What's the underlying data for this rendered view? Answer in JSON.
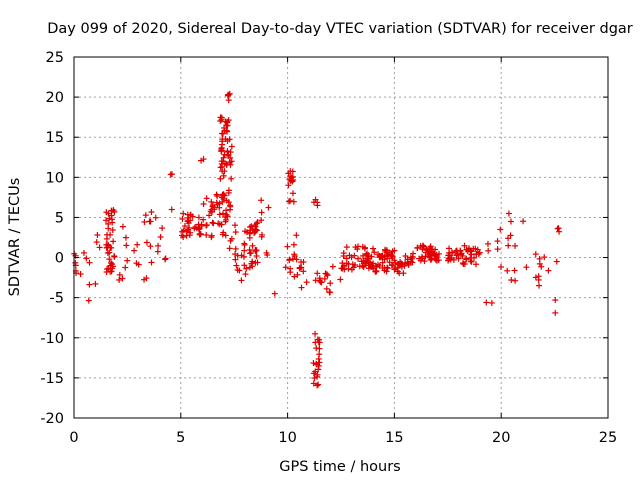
{
  "chart_data": {
    "type": "scatter",
    "title": "Day 099 of 2020, Sidereal Day-to-day VTEC variation (SDTVAR) for receiver dgar",
    "xlabel": "GPS time / hours",
    "ylabel": "SDTVAR / TECUs",
    "xlim": [
      0,
      25
    ],
    "ylim": [
      -20,
      25
    ],
    "xticks": [
      0,
      5,
      10,
      15,
      20,
      25
    ],
    "xtick_labels": [
      "0",
      "5",
      "10",
      "15",
      "20",
      "25"
    ],
    "yticks": [
      -20,
      -15,
      -10,
      -5,
      0,
      5,
      10,
      15,
      20,
      25
    ],
    "ytick_labels": [
      "-20",
      "-15",
      "-10",
      "-5",
      "0",
      "5",
      "10",
      "15",
      "20",
      "25"
    ],
    "grid": true,
    "marker": "+",
    "color": "#e00000",
    "clusters": [
      {
        "x": [
          0.0,
          0.1
        ],
        "y": [
          -2.5,
          1.8
        ],
        "n": 6
      },
      {
        "x": [
          0.3,
          1.2
        ],
        "y": [
          -6.0,
          3.0
        ],
        "n": 10
      },
      {
        "x": [
          1.5,
          1.9
        ],
        "y": [
          -2.0,
          6.0
        ],
        "n": 40
      },
      {
        "x": [
          2.0,
          2.5
        ],
        "y": [
          -3.0,
          5.0
        ],
        "n": 8
      },
      {
        "x": [
          2.8,
          4.6
        ],
        "y": [
          -3.0,
          6.0
        ],
        "n": 22
      },
      {
        "x": [
          4.5,
          4.6
        ],
        "y": [
          10.0,
          11.0
        ],
        "n": 2
      },
      {
        "x": [
          5.0,
          6.0
        ],
        "y": [
          2.5,
          5.5
        ],
        "n": 35
      },
      {
        "x": [
          5.9,
          6.1
        ],
        "y": [
          12.0,
          12.5
        ],
        "n": 2
      },
      {
        "x": [
          6.0,
          7.2
        ],
        "y": [
          2.5,
          8.0
        ],
        "n": 40
      },
      {
        "x": [
          6.8,
          7.4
        ],
        "y": [
          5.0,
          17.5
        ],
        "n": 60
      },
      {
        "x": [
          7.2,
          7.3
        ],
        "y": [
          19.5,
          20.5
        ],
        "n": 5
      },
      {
        "x": [
          7.0,
          7.6
        ],
        "y": [
          -0.5,
          13.0
        ],
        "n": 10
      },
      {
        "x": [
          7.5,
          8.2
        ],
        "y": [
          -3.0,
          3.5
        ],
        "n": 18
      },
      {
        "x": [
          8.2,
          8.6
        ],
        "y": [
          -1.5,
          4.5
        ],
        "n": 30
      },
      {
        "x": [
          8.7,
          9.3
        ],
        "y": [
          0.0,
          7.5
        ],
        "n": 8
      },
      {
        "x": [
          9.3,
          9.5
        ],
        "y": [
          -4.5,
          -4.5
        ],
        "n": 1
      },
      {
        "x": [
          9.8,
          10.5
        ],
        "y": [
          -2.5,
          3.0
        ],
        "n": 14
      },
      {
        "x": [
          10.0,
          10.3
        ],
        "y": [
          6.5,
          11.0
        ],
        "n": 16
      },
      {
        "x": [
          10.5,
          11.0
        ],
        "y": [
          -4.0,
          -0.5
        ],
        "n": 8
      },
      {
        "x": [
          11.2,
          11.4
        ],
        "y": [
          6.5,
          7.5
        ],
        "n": 4
      },
      {
        "x": [
          11.2,
          11.8
        ],
        "y": [
          -3.5,
          -1.5
        ],
        "n": 8
      },
      {
        "x": [
          11.2,
          11.5
        ],
        "y": [
          -16.0,
          -9.5
        ],
        "n": 24
      },
      {
        "x": [
          11.8,
          12.5
        ],
        "y": [
          -4.5,
          -1.0
        ],
        "n": 8
      },
      {
        "x": [
          12.5,
          14.0
        ],
        "y": [
          -1.5,
          1.5
        ],
        "n": 45
      },
      {
        "x": [
          13.7,
          15.0
        ],
        "y": [
          -2.0,
          1.0
        ],
        "n": 55
      },
      {
        "x": [
          15.0,
          15.5
        ],
        "y": [
          -2.0,
          -0.5
        ],
        "n": 15
      },
      {
        "x": [
          15.5,
          16.0
        ],
        "y": [
          -1.0,
          0.5
        ],
        "n": 12
      },
      {
        "x": [
          16.0,
          17.2
        ],
        "y": [
          -0.5,
          1.5
        ],
        "n": 45
      },
      {
        "x": [
          17.5,
          18.2
        ],
        "y": [
          -0.5,
          1.5
        ],
        "n": 25
      },
      {
        "x": [
          18.2,
          19.0
        ],
        "y": [
          -1.0,
          1.5
        ],
        "n": 25
      },
      {
        "x": [
          19.3,
          20.0
        ],
        "y": [
          -6.5,
          3.5
        ],
        "n": 8
      },
      {
        "x": [
          20.2,
          21.2
        ],
        "y": [
          -4.0,
          5.5
        ],
        "n": 12
      },
      {
        "x": [
          21.5,
          22.3
        ],
        "y": [
          -4.0,
          0.5
        ],
        "n": 10
      },
      {
        "x": [
          22.5,
          22.8
        ],
        "y": [
          -7.0,
          4.0
        ],
        "n": 6
      }
    ]
  }
}
